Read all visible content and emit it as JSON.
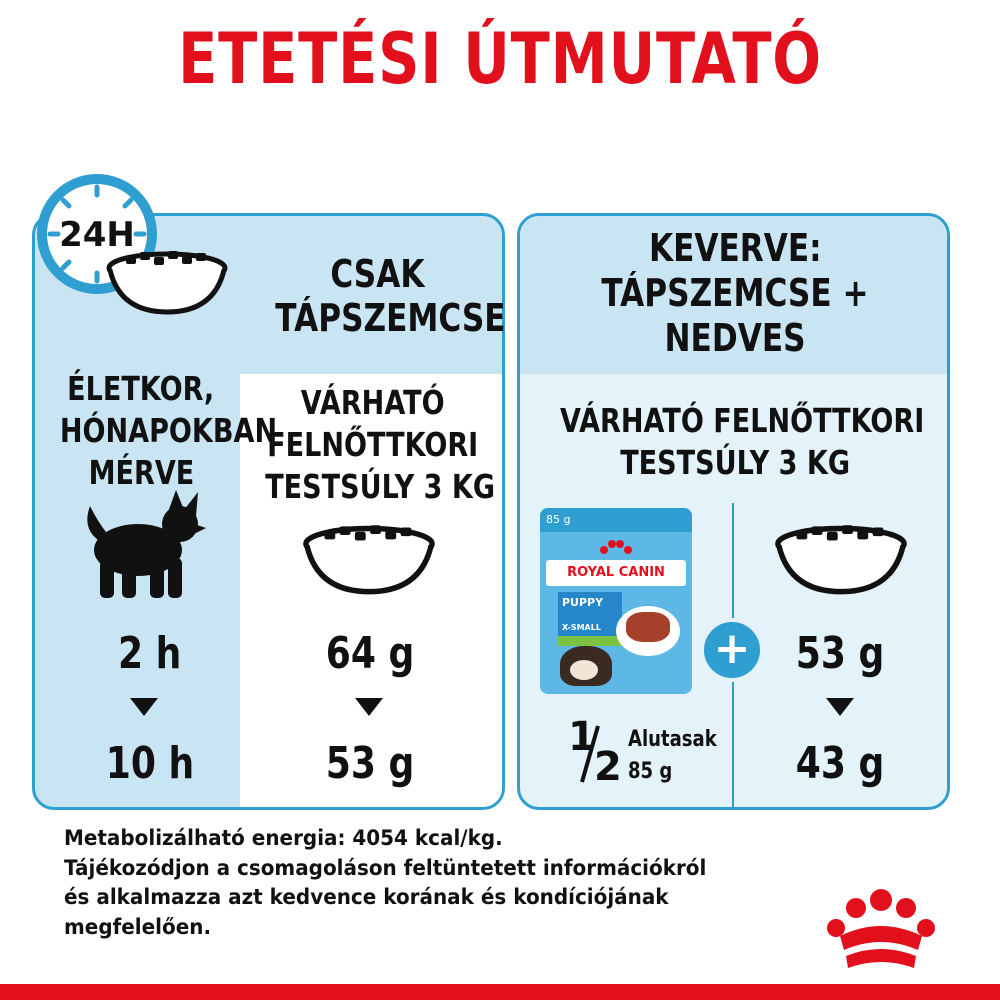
{
  "title": "ETETÉSI ÚTMUTATÓ",
  "clock": {
    "label": "24H"
  },
  "dry_only": {
    "heading_line1": "CSAK",
    "heading_line2": "TÁPSZEMCSE"
  },
  "age_column": {
    "label_line1": "ÉLETKOR,",
    "label_line2": "HÓNAPOKBAN",
    "label_line3": "MÉRVE",
    "start": "2 h",
    "end": "10 h"
  },
  "dry_column": {
    "label_line1": "VÁRHATÓ",
    "label_line2": "FELNŐTTKORI",
    "label_line3": "TESTSÚLY 3 KG",
    "start": "64 g",
    "end": "53 g"
  },
  "mixed": {
    "heading_line1": "KEVERVE:",
    "heading_line2": "TÁPSZEMCSE +",
    "heading_line3": "NEDVES",
    "label_line1": "VÁRHATÓ FELNŐTTKORI",
    "label_line2": "TESTSÚLY 3 KG",
    "pouch_fraction_num": "1",
    "pouch_fraction_den": "2",
    "pouch_label": "Alutasak",
    "pouch_weight": "85 g",
    "plus": "+",
    "dry_start": "53 g",
    "dry_end": "43 g"
  },
  "pouch": {
    "weight": "85 g",
    "brand": "ROYAL CANIN",
    "product": "PUPPY",
    "subtitle": "X-SMALL"
  },
  "footer": {
    "line1": "Metabolizálható energia: 4054 kcal/kg.",
    "line2": "Tájékozódjon a csomagoláson feltüntetett információkról",
    "line3": "és alkalmazza azt kedvence korának és kondíciójának",
    "line4": "megfelelően."
  },
  "colors": {
    "brand_red": "#e2101c",
    "accent_blue": "#2f9fd1",
    "panel_blue": "#c9e5f3",
    "panel_light": "#e4f2f9"
  }
}
